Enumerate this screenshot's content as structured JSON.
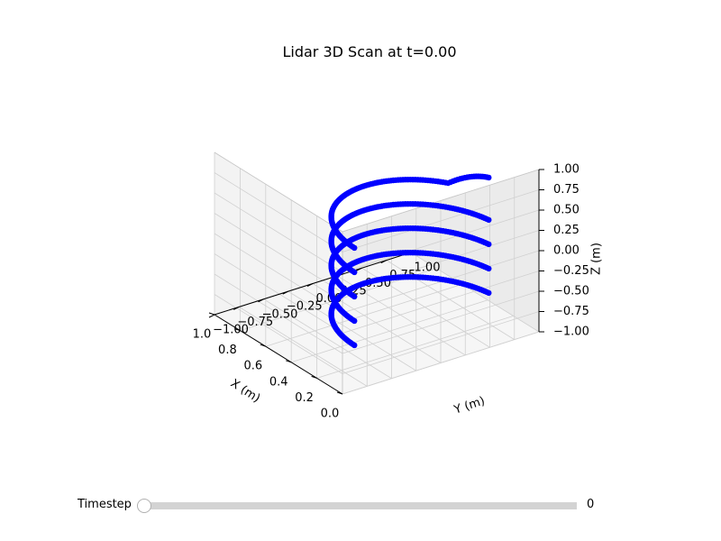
{
  "chart_data": {
    "type": "scatter",
    "projection": "3d",
    "title": "Lidar 3D Scan at t=0.00",
    "xlabel": "X (m)",
    "ylabel": "Y (m)",
    "zlabel": "Z (m)",
    "xlim": [
      0.0,
      1.0
    ],
    "ylim": [
      -1.0,
      1.0
    ],
    "zlim": [
      -1.0,
      1.0
    ],
    "xticks": [
      "0.0",
      "0.2",
      "0.4",
      "0.6",
      "0.8",
      "1.0"
    ],
    "yticks": [
      "−1.00",
      "−0.75",
      "−0.50",
      "−0.25",
      "0.00",
      "0.25",
      "0.50",
      "0.75",
      "1.00"
    ],
    "zticks": [
      "−1.00",
      "−0.75",
      "−0.50",
      "−0.25",
      "0.00",
      "0.25",
      "0.50",
      "0.75",
      "1.00"
    ],
    "grid": true,
    "point_color": "#0000ff",
    "series": [
      {
        "elevation": 0.6,
        "azimuth_range_deg": [
          10,
          180
        ]
      },
      {
        "elevation": 0.3,
        "azimuth_range_deg": [
          10,
          180
        ]
      },
      {
        "elevation": 0.0,
        "azimuth_range_deg": [
          10,
          180
        ]
      },
      {
        "elevation": -0.3,
        "azimuth_range_deg": [
          10,
          180
        ]
      },
      {
        "elevation": -0.6,
        "azimuth_range_deg": [
          10,
          180
        ]
      }
    ]
  },
  "slider": {
    "label": "Timestep",
    "value": "0",
    "position": 0
  }
}
